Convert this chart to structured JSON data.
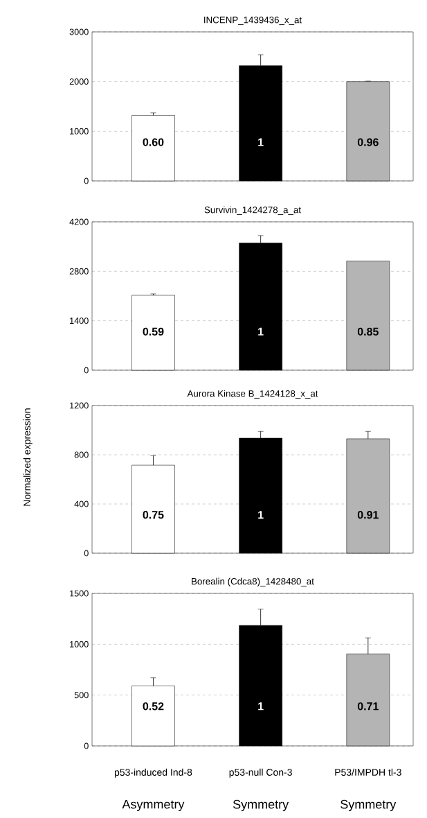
{
  "chart_data": [
    {
      "type": "bar",
      "title": "INCENP_1439436_x_at",
      "categories": [
        null,
        null,
        null
      ],
      "tick_labels": "y",
      "values": [
        1320,
        2320,
        2000
      ],
      "errors": [
        50,
        220,
        10
      ],
      "colors": [
        "#ffffff",
        "#000000",
        "#b4b4b4"
      ],
      "annotations": [
        "0.60",
        "1",
        "0.96"
      ],
      "ylim": [
        0,
        3000
      ],
      "yticks": [
        0,
        1000,
        2000,
        3000
      ],
      "grid": "y"
    },
    {
      "type": "bar",
      "title": "Survivin_1424278_a_at",
      "categories": [
        null,
        null,
        null
      ],
      "tick_labels": "y",
      "values": [
        2120,
        3600,
        3090
      ],
      "errors": [
        40,
        210,
        null
      ],
      "colors": [
        "#ffffff",
        "#000000",
        "#b4b4b4"
      ],
      "annotations": [
        "0.59",
        "1",
        "0.85"
      ],
      "ylim": [
        0,
        4200
      ],
      "yticks": [
        0,
        1400,
        2800,
        4200
      ],
      "grid": "y"
    },
    {
      "type": "bar",
      "title": "Aurora Kinase B_1424128_x_at",
      "ylabel": "Normalized expression",
      "categories": [
        null,
        null,
        null
      ],
      "tick_labels": "y",
      "values": [
        715,
        935,
        930
      ],
      "errors": [
        78,
        55,
        60
      ],
      "colors": [
        "#ffffff",
        "#000000",
        "#b4b4b4"
      ],
      "annotations": [
        "0.75",
        "1",
        "0.91"
      ],
      "ylim": [
        0,
        1200
      ],
      "yticks": [
        0,
        400,
        800,
        1200
      ],
      "grid": "y"
    },
    {
      "type": "bar",
      "title": "Borealin (Cdca8)_1428480_at",
      "categories": [
        "p53-induced Ind-8",
        "p53-null Con-3",
        "P53/IMPDH tl-3"
      ],
      "values": [
        590,
        1185,
        905
      ],
      "errors": [
        80,
        160,
        158
      ],
      "colors": [
        "#ffffff",
        "#000000",
        "#b4b4b4"
      ],
      "ylim": [
        0,
        1500
      ],
      "yticks": [
        0,
        500,
        1000,
        1500
      ],
      "grid": "y",
      "annotations": [
        "0.52",
        "1",
        "0.71",
        "Asymmetry",
        "Symmetry",
        "Symmetry"
      ]
    }
  ]
}
